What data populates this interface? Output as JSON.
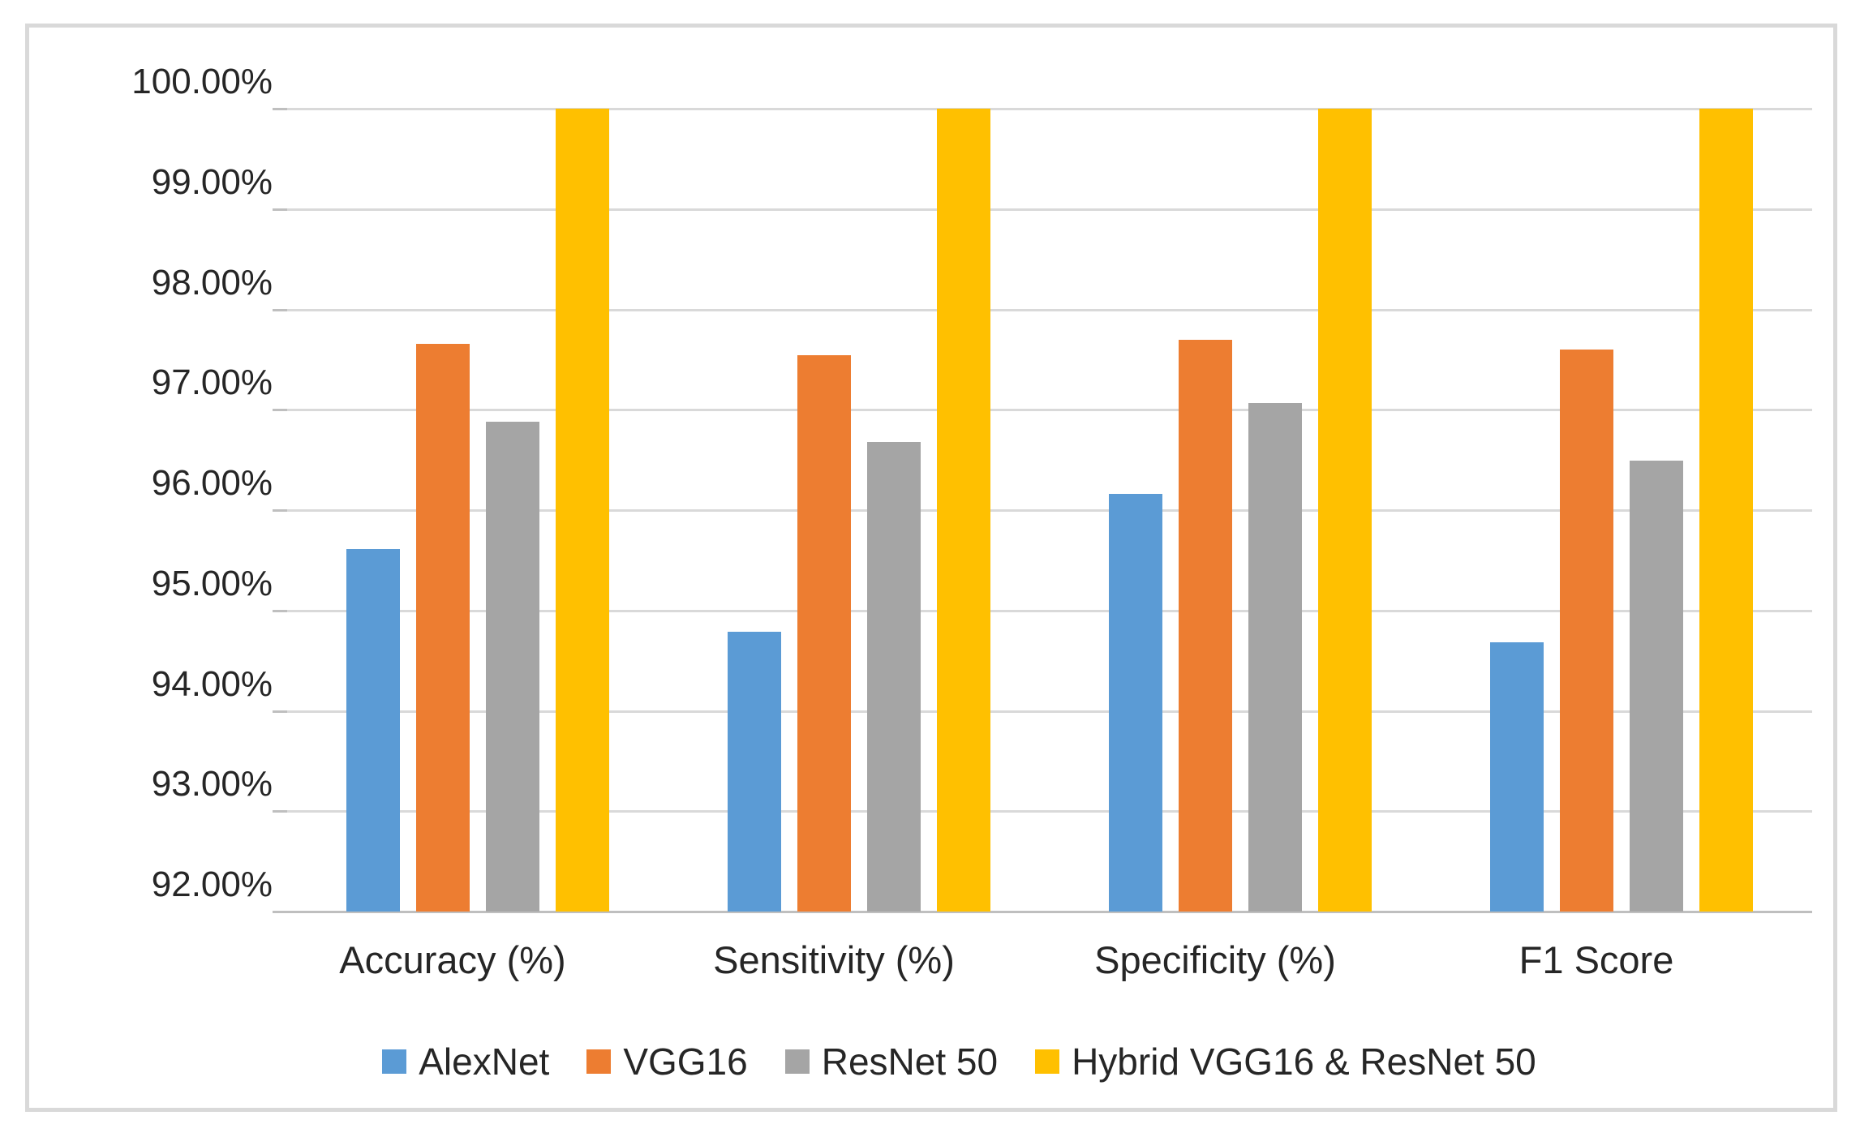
{
  "chart_data": {
    "type": "bar",
    "title": "",
    "xlabel": "",
    "ylabel": "",
    "categories": [
      "Accuracy (%)",
      "Sensitivity (%)",
      "Specificity (%)",
      "F1 Score"
    ],
    "series": [
      {
        "name": "AlexNet",
        "color": "#5B9BD5",
        "values": [
          95.61,
          94.79,
          96.16,
          94.68
        ]
      },
      {
        "name": "VGG16",
        "color": "#ED7D31",
        "values": [
          97.66,
          97.54,
          97.7,
          97.6
        ]
      },
      {
        "name": "ResNet 50",
        "color": "#A5A5A5",
        "values": [
          96.88,
          96.68,
          97.07,
          96.49
        ]
      },
      {
        "name": "Hybrid VGG16 & ResNet 50",
        "color": "#FFC000",
        "values": [
          100.0,
          100.0,
          100.0,
          100.0
        ]
      }
    ],
    "y_axis": {
      "min": 92,
      "max": 100,
      "step": 1,
      "tick_labels": [
        "100.00%",
        "99.00%",
        "98.00%",
        "97.00%",
        "96.00%",
        "95.00%",
        "94.00%",
        "93.00%",
        "92.00%"
      ]
    },
    "grid": true,
    "legend_position": "bottom"
  },
  "colors": {
    "gridline": "#d9d9d9",
    "axis_line": "#bfbfbf",
    "frame_border": "#d9d9d9",
    "text": "#262626",
    "background": "#ffffff"
  }
}
